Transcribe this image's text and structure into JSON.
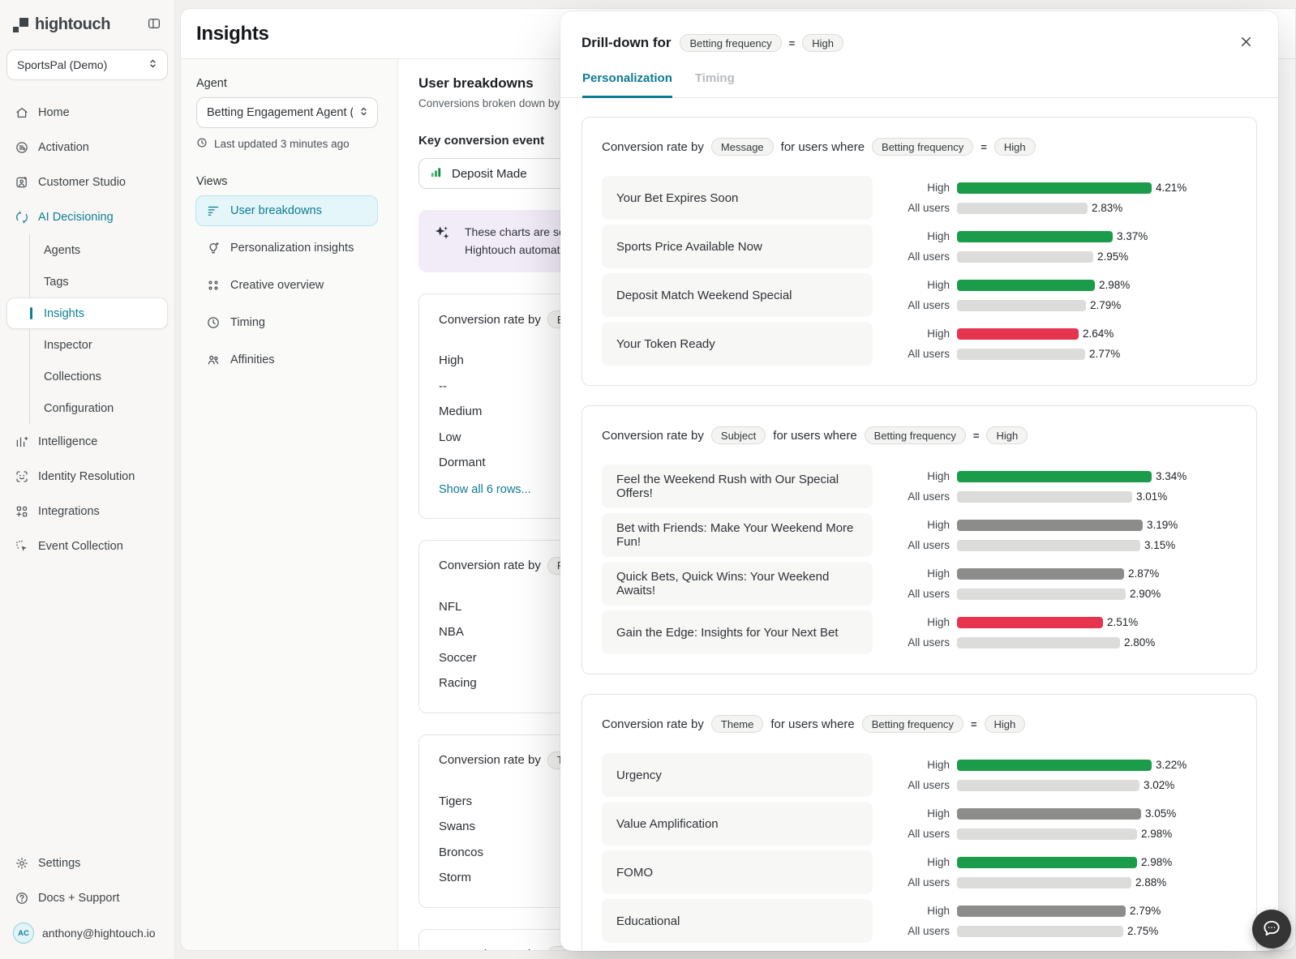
{
  "colors": {
    "accent_teal": "#0d7b91",
    "bar_green": "#1b9c4b",
    "bar_red": "#e6334e",
    "bar_dark_gray": "#8c8c8b",
    "bar_light_gray": "#dcdcda",
    "banner_purple": "#f2ecf9"
  },
  "sidebar": {
    "logo_text": "hightouch",
    "logo_icon": "hightouch-mark",
    "collapse_icon": "panel-toggle",
    "workspace": {
      "name": "SportsPal (Demo)",
      "icon": "chevron-up-down"
    },
    "nav": [
      {
        "label": "Home",
        "icon": "home"
      },
      {
        "label": "Activation",
        "icon": "activation"
      },
      {
        "label": "Customer Studio",
        "icon": "customer-studio"
      },
      {
        "label": "AI Decisioning",
        "icon": "ai-decisioning",
        "teal": true,
        "children": [
          {
            "label": "Agents"
          },
          {
            "label": "Tags"
          },
          {
            "label": "Insights",
            "active": true
          },
          {
            "label": "Inspector"
          },
          {
            "label": "Collections"
          },
          {
            "label": "Configuration"
          }
        ]
      },
      {
        "label": "Intelligence",
        "icon": "intelligence"
      },
      {
        "label": "Identity Resolution",
        "icon": "identity-resolution"
      },
      {
        "label": "Integrations",
        "icon": "integrations"
      },
      {
        "label": "Event Collection",
        "icon": "event-collection"
      }
    ],
    "bottom_nav": [
      {
        "label": "Settings",
        "icon": "settings"
      },
      {
        "label": "Docs + Support",
        "icon": "docs-support"
      }
    ],
    "account": {
      "email": "anthony@hightouch.io",
      "avatar_initials": "AC"
    }
  },
  "page": {
    "title": "Insights",
    "agent_label": "Agent",
    "agent_value": "Betting Engagement Agent (...",
    "last_updated": "Last updated 3 minutes ago",
    "views_label": "Views",
    "views": [
      {
        "label": "User breakdowns",
        "icon": "funnel",
        "active": true
      },
      {
        "label": "Personalization insights",
        "icon": "personalization"
      },
      {
        "label": "Creative overview",
        "icon": "creative-overview"
      },
      {
        "label": "Timing",
        "icon": "timing"
      },
      {
        "label": "Affinities",
        "icon": "affinities"
      }
    ],
    "user_breakdowns": {
      "title": "User breakdowns",
      "subtitle": "Conversions broken down by user",
      "key_event_label": "Key conversion event",
      "key_event_value": "Deposit Made",
      "key_event_icon": "chart-bars",
      "banner_icon": "sparkles",
      "banner_line1": "These charts are so",
      "banner_line2": "Hightouch automati",
      "background_cards": [
        {
          "title_prefix": "Conversion rate by",
          "pill": "B",
          "rows": [
            "High",
            "--",
            "Medium",
            "Low",
            "Dormant"
          ],
          "link": "Show all 6 rows..."
        },
        {
          "title_prefix": "Conversion rate by",
          "pill": "Pre",
          "rows": [
            "NFL",
            "NBA",
            "Soccer",
            "Racing"
          ]
        },
        {
          "title_prefix": "Conversion rate by",
          "pill": "Tea",
          "rows": [
            "Tigers",
            "Swans",
            "Broncos",
            "Storm"
          ]
        },
        {
          "title_prefix": "Conversion rate by",
          "pill": "Bet",
          "rows": []
        }
      ]
    }
  },
  "drilldown": {
    "title_prefix": "Drill-down for",
    "filter_pill": "Betting frequency",
    "equals": "=",
    "value_pill": "High",
    "close_icon": "close",
    "tabs": [
      {
        "label": "Personalization",
        "active": true
      },
      {
        "label": "Timing",
        "active": false
      }
    ],
    "series_labels": {
      "high": "High",
      "all": "All users"
    },
    "card_title": {
      "prefix": "Conversion rate by",
      "mid": "for users where",
      "filter": "Betting frequency",
      "equals": "=",
      "value": "High"
    },
    "cards": [
      {
        "by_pill": "Message",
        "rows": [
          {
            "label": "Your Bet Expires Soon",
            "high": 4.21,
            "all": 2.83,
            "high_color": "green"
          },
          {
            "label": "Sports Price Available Now",
            "high": 3.37,
            "all": 2.95,
            "high_color": "green"
          },
          {
            "label": "Deposit Match Weekend Special",
            "high": 2.98,
            "all": 2.79,
            "high_color": "green"
          },
          {
            "label": "Your Token Ready",
            "high": 2.64,
            "all": 2.77,
            "high_color": "red"
          }
        ]
      },
      {
        "by_pill": "Subject",
        "rows": [
          {
            "label": "Feel the Weekend Rush with Our Special Offers!",
            "high": 3.34,
            "all": 3.01,
            "high_color": "green"
          },
          {
            "label": "Bet with Friends: Make Your Weekend More Fun!",
            "high": 3.19,
            "all": 3.15,
            "high_color": "gray"
          },
          {
            "label": "Quick Bets, Quick Wins: Your Weekend Awaits!",
            "high": 2.87,
            "all": 2.9,
            "high_color": "gray"
          },
          {
            "label": "Gain the Edge: Insights for Your Next Bet",
            "high": 2.51,
            "all": 2.8,
            "high_color": "red"
          }
        ]
      },
      {
        "by_pill": "Theme",
        "rows": [
          {
            "label": "Urgency",
            "high": 3.22,
            "all": 3.02,
            "high_color": "green"
          },
          {
            "label": "Value Amplification",
            "high": 3.05,
            "all": 2.98,
            "high_color": "gray"
          },
          {
            "label": "FOMO",
            "high": 2.98,
            "all": 2.88,
            "high_color": "green"
          },
          {
            "label": "Educational",
            "high": 2.79,
            "all": 2.75,
            "high_color": "gray"
          }
        ]
      }
    ]
  },
  "chat_icon": "chat-bubble"
}
